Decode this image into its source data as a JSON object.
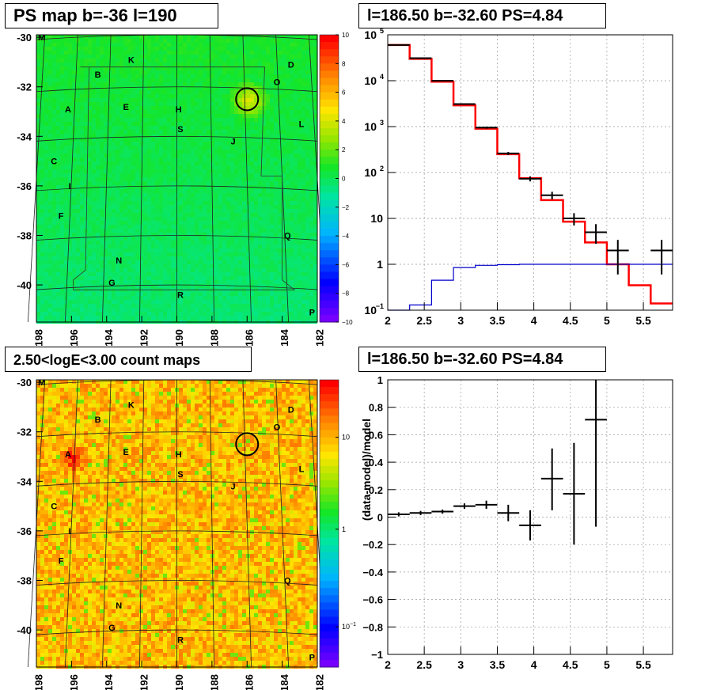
{
  "titles": {
    "psmap": "PS map b=-36 l=190",
    "spectrum": "l=186.50 b=-32.60 PS=4.84",
    "countmap": "2.50<logE<3.00 count maps",
    "residual": "l=186.50 b=-32.60 PS=4.84"
  },
  "chart_data": [
    {
      "type": "heatmap",
      "id": "ps-map",
      "title": "PS map b=-36 l=190",
      "x_ticks": [
        "198",
        "196",
        "194",
        "192",
        "190",
        "188",
        "186",
        "184",
        "182"
      ],
      "y_ticks": [
        "-30",
        "-32",
        "-34",
        "-36",
        "-38",
        "-40"
      ],
      "xlim": [
        198,
        182
      ],
      "ylim": [
        -41.5,
        -29.9
      ],
      "colorbar": {
        "ticks": [
          "10",
          "8",
          "6",
          "4",
          "2",
          "0",
          "−2",
          "−4",
          "−6",
          "−8",
          "−10"
        ],
        "range": [
          -10,
          10
        ]
      },
      "source_labels": [
        {
          "t": "M",
          "x": 197.7,
          "y": -30.0
        },
        {
          "t": "K",
          "x": 192.6,
          "y": -30.9
        },
        {
          "t": "D",
          "x": 183.5,
          "y": -31.1
        },
        {
          "t": "B",
          "x": 194.5,
          "y": -31.5
        },
        {
          "t": "O",
          "x": 184.3,
          "y": -31.8
        },
        {
          "t": "A",
          "x": 196.2,
          "y": -32.9
        },
        {
          "t": "E",
          "x": 192.9,
          "y": -32.8
        },
        {
          "t": "H",
          "x": 189.9,
          "y": -32.9
        },
        {
          "t": "L",
          "x": 182.9,
          "y": -33.5
        },
        {
          "t": "S",
          "x": 189.8,
          "y": -33.7
        },
        {
          "t": "J",
          "x": 186.8,
          "y": -34.2
        },
        {
          "t": "C",
          "x": 197.0,
          "y": -35.0
        },
        {
          "t": "I",
          "x": 196.1,
          "y": -36.0
        },
        {
          "t": "F",
          "x": 196.6,
          "y": -37.2
        },
        {
          "t": "Q",
          "x": 183.7,
          "y": -38.0
        },
        {
          "t": "N",
          "x": 193.3,
          "y": -39.0
        },
        {
          "t": "G",
          "x": 193.7,
          "y": -39.9
        },
        {
          "t": "R",
          "x": 189.8,
          "y": -40.4
        },
        {
          "t": "P",
          "x": 182.3,
          "y": -41.1
        }
      ],
      "circle": {
        "l": 186.0,
        "b": -32.5
      }
    },
    {
      "type": "line",
      "id": "spectrum",
      "title": "l=186.50 b=-32.60 PS=4.84",
      "scale_y": "log",
      "xlim": [
        2.0,
        5.9
      ],
      "ylim": [
        0.1,
        100000
      ],
      "x_ticks": [
        "2",
        "2.5",
        "3",
        "3.5",
        "4",
        "4.5",
        "5",
        "5.5"
      ],
      "y_ticks": [
        {
          "v": 0.1,
          "b": "10",
          "e": "−1"
        },
        {
          "v": 1,
          "b": "1",
          "e": ""
        },
        {
          "v": 10,
          "b": "10",
          "e": ""
        },
        {
          "v": 100,
          "b": "10",
          "e": "2"
        },
        {
          "v": 1000,
          "b": "10",
          "e": "3"
        },
        {
          "v": 10000,
          "b": "10",
          "e": "4"
        },
        {
          "v": 100000,
          "b": "10",
          "e": "5"
        }
      ],
      "bin_edges": [
        2.0,
        2.3,
        2.6,
        2.9,
        3.2,
        3.5,
        3.8,
        4.1,
        4.4,
        4.7,
        5.0,
        5.3,
        5.6,
        5.9
      ],
      "series": [
        {
          "name": "",
          "color": "#ff0000",
          "values": [
            60000,
            30000,
            9500,
            2900,
            900,
            250,
            75,
            25,
            8.5,
            3,
            1,
            0.35,
            0.14
          ]
        },
        {
          "name": "",
          "color": "#0000cc",
          "values": [
            0.08,
            0.13,
            0.45,
            0.85,
            0.95,
            0.98,
            1.0,
            1.0,
            1.0,
            1.0,
            1.0,
            1.0,
            1.0
          ]
        }
      ],
      "points": [
        {
          "x": 2.15,
          "y": 60000,
          "ylo": 58000,
          "yhi": 62000
        },
        {
          "x": 2.45,
          "y": 31000,
          "ylo": 30000,
          "yhi": 32000
        },
        {
          "x": 2.75,
          "y": 10000,
          "ylo": 9700,
          "yhi": 10300
        },
        {
          "x": 3.05,
          "y": 3100,
          "ylo": 3000,
          "yhi": 3200
        },
        {
          "x": 3.35,
          "y": 950,
          "ylo": 900,
          "yhi": 1000
        },
        {
          "x": 3.65,
          "y": 260,
          "ylo": 240,
          "yhi": 280
        },
        {
          "x": 3.95,
          "y": 73,
          "ylo": 64,
          "yhi": 82
        },
        {
          "x": 4.25,
          "y": 32,
          "ylo": 26,
          "yhi": 38
        },
        {
          "x": 4.55,
          "y": 10,
          "ylo": 7,
          "yhi": 13
        },
        {
          "x": 4.85,
          "y": 5,
          "ylo": 2.8,
          "yhi": 7.5
        },
        {
          "x": 5.15,
          "y": 2,
          "ylo": 0.6,
          "yhi": 3.4
        },
        {
          "x": 5.75,
          "y": 2,
          "ylo": 0.6,
          "yhi": 3.4
        }
      ]
    },
    {
      "type": "heatmap",
      "id": "count-map",
      "title": "2.50<logE<3.00 count maps",
      "x_ticks": [
        "198",
        "196",
        "194",
        "192",
        "190",
        "188",
        "186",
        "184",
        "182"
      ],
      "y_ticks": [
        "-30",
        "-32",
        "-34",
        "-36",
        "-38",
        "-40"
      ],
      "xlim": [
        198,
        182
      ],
      "ylim": [
        -41.5,
        -29.9
      ],
      "colorbar": {
        "ticks": [
          {
            "b": "10",
            "e": ""
          },
          {
            "b": "1",
            "e": ""
          },
          {
            "b": "10",
            "e": "−1"
          }
        ],
        "scale": "log"
      },
      "circle": {
        "l": 186.0,
        "b": -32.5
      }
    },
    {
      "type": "scatter",
      "id": "residual",
      "title": "l=186.50 b=-32.60 PS=4.84",
      "ylabel": "(data-model)/model",
      "xlim": [
        2.0,
        5.9
      ],
      "ylim": [
        -1,
        1
      ],
      "x_ticks": [
        "2",
        "2.5",
        "3",
        "3.5",
        "4",
        "4.5",
        "5",
        "5.5"
      ],
      "y_ticks": [
        "1",
        "0.8",
        "0.6",
        "0.4",
        "0.2",
        "0",
        "−0.2",
        "−0.4",
        "−0.6",
        "−0.8",
        "−1"
      ],
      "points": [
        {
          "x": 2.15,
          "y": 0.02,
          "ylo": 0.005,
          "yhi": 0.035
        },
        {
          "x": 2.45,
          "y": 0.03,
          "ylo": 0.015,
          "yhi": 0.045
        },
        {
          "x": 2.75,
          "y": 0.04,
          "ylo": 0.025,
          "yhi": 0.055
        },
        {
          "x": 3.05,
          "y": 0.08,
          "ylo": 0.06,
          "yhi": 0.1
        },
        {
          "x": 3.35,
          "y": 0.09,
          "ylo": 0.06,
          "yhi": 0.12
        },
        {
          "x": 3.65,
          "y": 0.03,
          "ylo": -0.03,
          "yhi": 0.09
        },
        {
          "x": 3.95,
          "y": -0.06,
          "ylo": -0.17,
          "yhi": 0.05
        },
        {
          "x": 4.25,
          "y": 0.28,
          "ylo": 0.05,
          "yhi": 0.5
        },
        {
          "x": 4.55,
          "y": 0.17,
          "ylo": -0.2,
          "yhi": 0.54
        },
        {
          "x": 4.85,
          "y": 0.71,
          "ylo": -0.07,
          "yhi": 1.0
        }
      ]
    }
  ]
}
